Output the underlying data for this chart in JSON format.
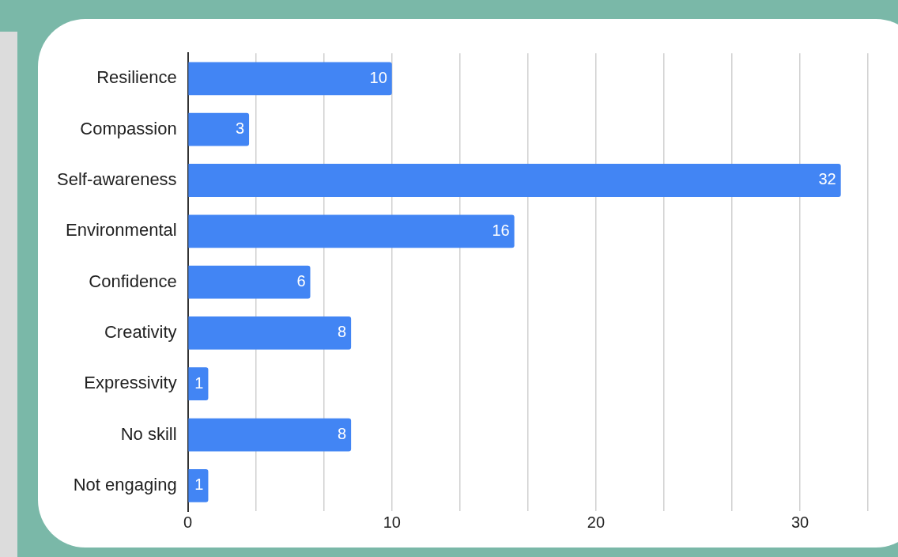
{
  "chart_data": {
    "type": "bar",
    "orientation": "horizontal",
    "categories": [
      "Resilience",
      "Compassion",
      "Self-awareness",
      "Environmental",
      "Confidence",
      "Creativity",
      "Expressivity",
      "No skill",
      "Not engaging"
    ],
    "values": [
      10,
      3,
      32,
      16,
      6,
      8,
      1,
      8,
      1
    ],
    "color": "#4285f4",
    "xlim": [
      0,
      33.33
    ],
    "xticks": [
      0,
      {
        "value": 3.33,
        "label": null
      },
      {
        "value": 6.67,
        "label": null
      },
      10,
      {
        "value": 13.33,
        "label": null
      },
      {
        "value": 16.67,
        "label": null
      },
      20,
      {
        "value": 23.33,
        "label": null
      },
      {
        "value": 26.67,
        "label": null
      },
      30,
      {
        "value": 33.33,
        "label": null
      }
    ],
    "grid": "x",
    "data_labels": true,
    "legend": false
  }
}
